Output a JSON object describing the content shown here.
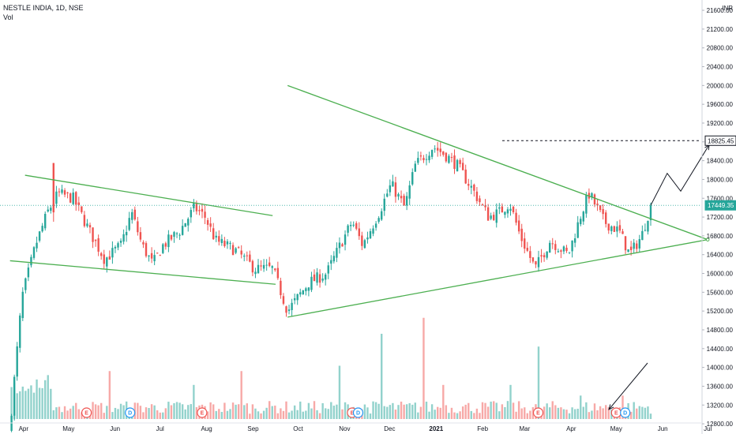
{
  "header": {
    "symbol": "NESTLE INDIA, 1D, NSE",
    "volume_label": "Vol"
  },
  "colors": {
    "up": "#26a69a",
    "down": "#ef5350",
    "trendline": "#4caf50",
    "current_price": "#26a69a",
    "target_line": "#131722",
    "earnings_badge": "#ef5350",
    "dividend_badge": "#2196f3"
  },
  "chart_data": {
    "type": "candlestick",
    "currency": "INR",
    "ylim": [
      12600,
      21600
    ],
    "y_ticks": [
      12800,
      13200,
      13600,
      14000,
      14400,
      14800,
      15200,
      15600,
      16000,
      16400,
      16800,
      17200,
      17600,
      18000,
      18400,
      18800,
      19200,
      19600,
      20000,
      20400,
      20800,
      21200,
      21600
    ],
    "x_months": [
      "Apr",
      "May",
      "Jun",
      "Jul",
      "Aug",
      "Sep",
      "Oct",
      "Nov",
      "Dec",
      "2021",
      "Feb",
      "Mar",
      "Apr",
      "May",
      "Jun",
      "Jul"
    ],
    "current_price": "17449.35",
    "target_price": "18825.45",
    "candle_keypoints": [
      [
        "2020-03-24",
        13100
      ],
      [
        "2020-03-31",
        15500
      ],
      [
        "2020-04-09",
        16600
      ],
      [
        "2020-04-17",
        17300
      ],
      [
        "2020-04-24",
        17700
      ],
      [
        "2020-05-04",
        17600
      ],
      [
        "2020-05-15",
        16900
      ],
      [
        "2020-05-25",
        16300
      ],
      [
        "2020-06-05",
        16600
      ],
      [
        "2020-06-12",
        17300
      ],
      [
        "2020-06-19",
        16600
      ],
      [
        "2020-06-26",
        16200
      ],
      [
        "2020-07-03",
        16600
      ],
      [
        "2020-07-14",
        16900
      ],
      [
        "2020-07-24",
        17400
      ],
      [
        "2020-07-31",
        17200
      ],
      [
        "2020-08-07",
        16700
      ],
      [
        "2020-08-20",
        16500
      ],
      [
        "2020-09-02",
        16100
      ],
      [
        "2020-09-14",
        16100
      ],
      [
        "2020-09-24",
        15200
      ],
      [
        "2020-10-08",
        15800
      ],
      [
        "2020-10-20",
        16000
      ],
      [
        "2020-10-29",
        16600
      ],
      [
        "2020-11-06",
        17100
      ],
      [
        "2020-11-13",
        16600
      ],
      [
        "2020-11-24",
        17300
      ],
      [
        "2020-12-02",
        17900
      ],
      [
        "2020-12-11",
        17400
      ],
      [
        "2020-12-18",
        18300
      ],
      [
        "2020-12-30",
        18700
      ],
      [
        "2021-01-08",
        18500
      ],
      [
        "2021-01-15",
        18300
      ],
      [
        "2021-01-25",
        17800
      ],
      [
        "2021-02-05",
        17200
      ],
      [
        "2021-02-12",
        17300
      ],
      [
        "2021-02-19",
        17500
      ],
      [
        "2021-02-26",
        16800
      ],
      [
        "2021-03-08",
        16100
      ],
      [
        "2021-03-18",
        16700
      ],
      [
        "2021-03-30",
        16400
      ],
      [
        "2021-04-08",
        17300
      ],
      [
        "2021-04-13",
        17700
      ],
      [
        "2021-04-23",
        17100
      ],
      [
        "2021-05-03",
        16900
      ],
      [
        "2021-05-10",
        16400
      ],
      [
        "2021-05-18",
        16800
      ],
      [
        "2021-05-24",
        17449.35
      ]
    ],
    "volume_spikes": [
      [
        "2020-05-29",
        0.45
      ],
      [
        "2020-07-24",
        0.32
      ],
      [
        "2020-08-24",
        0.45
      ],
      [
        "2020-10-28",
        0.5
      ],
      [
        "2020-11-26",
        0.8
      ],
      [
        "2020-12-24",
        0.95
      ],
      [
        "2021-01-06",
        0.32
      ],
      [
        "2021-02-19",
        0.32
      ],
      [
        "2021-03-10",
        0.68
      ],
      [
        "2021-04-08",
        0.22
      ],
      [
        "2021-05-06",
        0.22
      ]
    ],
    "trendlines": [
      {
        "name": "flag-upper",
        "points": [
          [
            "2020-04-02",
            18090
          ],
          [
            "2020-09-14",
            17230
          ]
        ]
      },
      {
        "name": "flag-lower",
        "points": [
          [
            "2020-03-23",
            16270
          ],
          [
            "2020-09-16",
            15770
          ]
        ]
      },
      {
        "name": "triangle-upper",
        "points": [
          [
            "2020-09-24",
            20000
          ],
          [
            "2021-07-01",
            16720
          ]
        ]
      },
      {
        "name": "triangle-lower",
        "points": [
          [
            "2020-09-24",
            15070
          ],
          [
            "2021-07-01",
            16720
          ]
        ]
      }
    ],
    "projection_path": [
      [
        "2021-05-24",
        17449.35
      ],
      [
        "2021-06-04",
        18130
      ],
      [
        "2021-06-13",
        17750
      ],
      [
        "2021-07-02",
        18740
      ]
    ],
    "events": [
      {
        "type": "E",
        "label": "E",
        "date": "2020-05-13"
      },
      {
        "type": "D",
        "label": "D",
        "date": "2020-06-11"
      },
      {
        "type": "E",
        "label": "E",
        "date": "2020-07-29"
      },
      {
        "type": "E",
        "label": "E",
        "date": "2020-11-06"
      },
      {
        "type": "D",
        "label": "D",
        "date": "2020-11-10"
      },
      {
        "type": "E",
        "label": "E",
        "date": "2021-03-10"
      },
      {
        "type": "E",
        "label": "E",
        "date": "2021-05-01"
      },
      {
        "type": "D",
        "label": "D",
        "date": "2021-05-07"
      }
    ]
  }
}
